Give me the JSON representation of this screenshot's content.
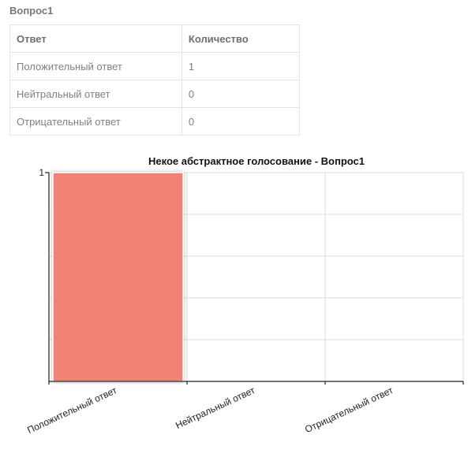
{
  "question": {
    "title": "Вопрос1"
  },
  "table": {
    "headers": {
      "answer": "Ответ",
      "count": "Количество"
    },
    "rows": [
      {
        "answer": "Положительный ответ",
        "count": "1"
      },
      {
        "answer": "Нейтральный ответ",
        "count": "0"
      },
      {
        "answer": "Отрицательный ответ",
        "count": "0"
      }
    ]
  },
  "chart_data": {
    "type": "bar",
    "title": "Некое абстрактное голосование - Вопрос1",
    "categories": [
      "Положительный ответ",
      "Нейтральный ответ",
      "Отрицательный ответ"
    ],
    "values": [
      1,
      0,
      0
    ],
    "ylim": [
      0,
      1
    ],
    "y_tick_labels": [
      "1"
    ],
    "grid": true,
    "bar_color": "#f08375"
  }
}
